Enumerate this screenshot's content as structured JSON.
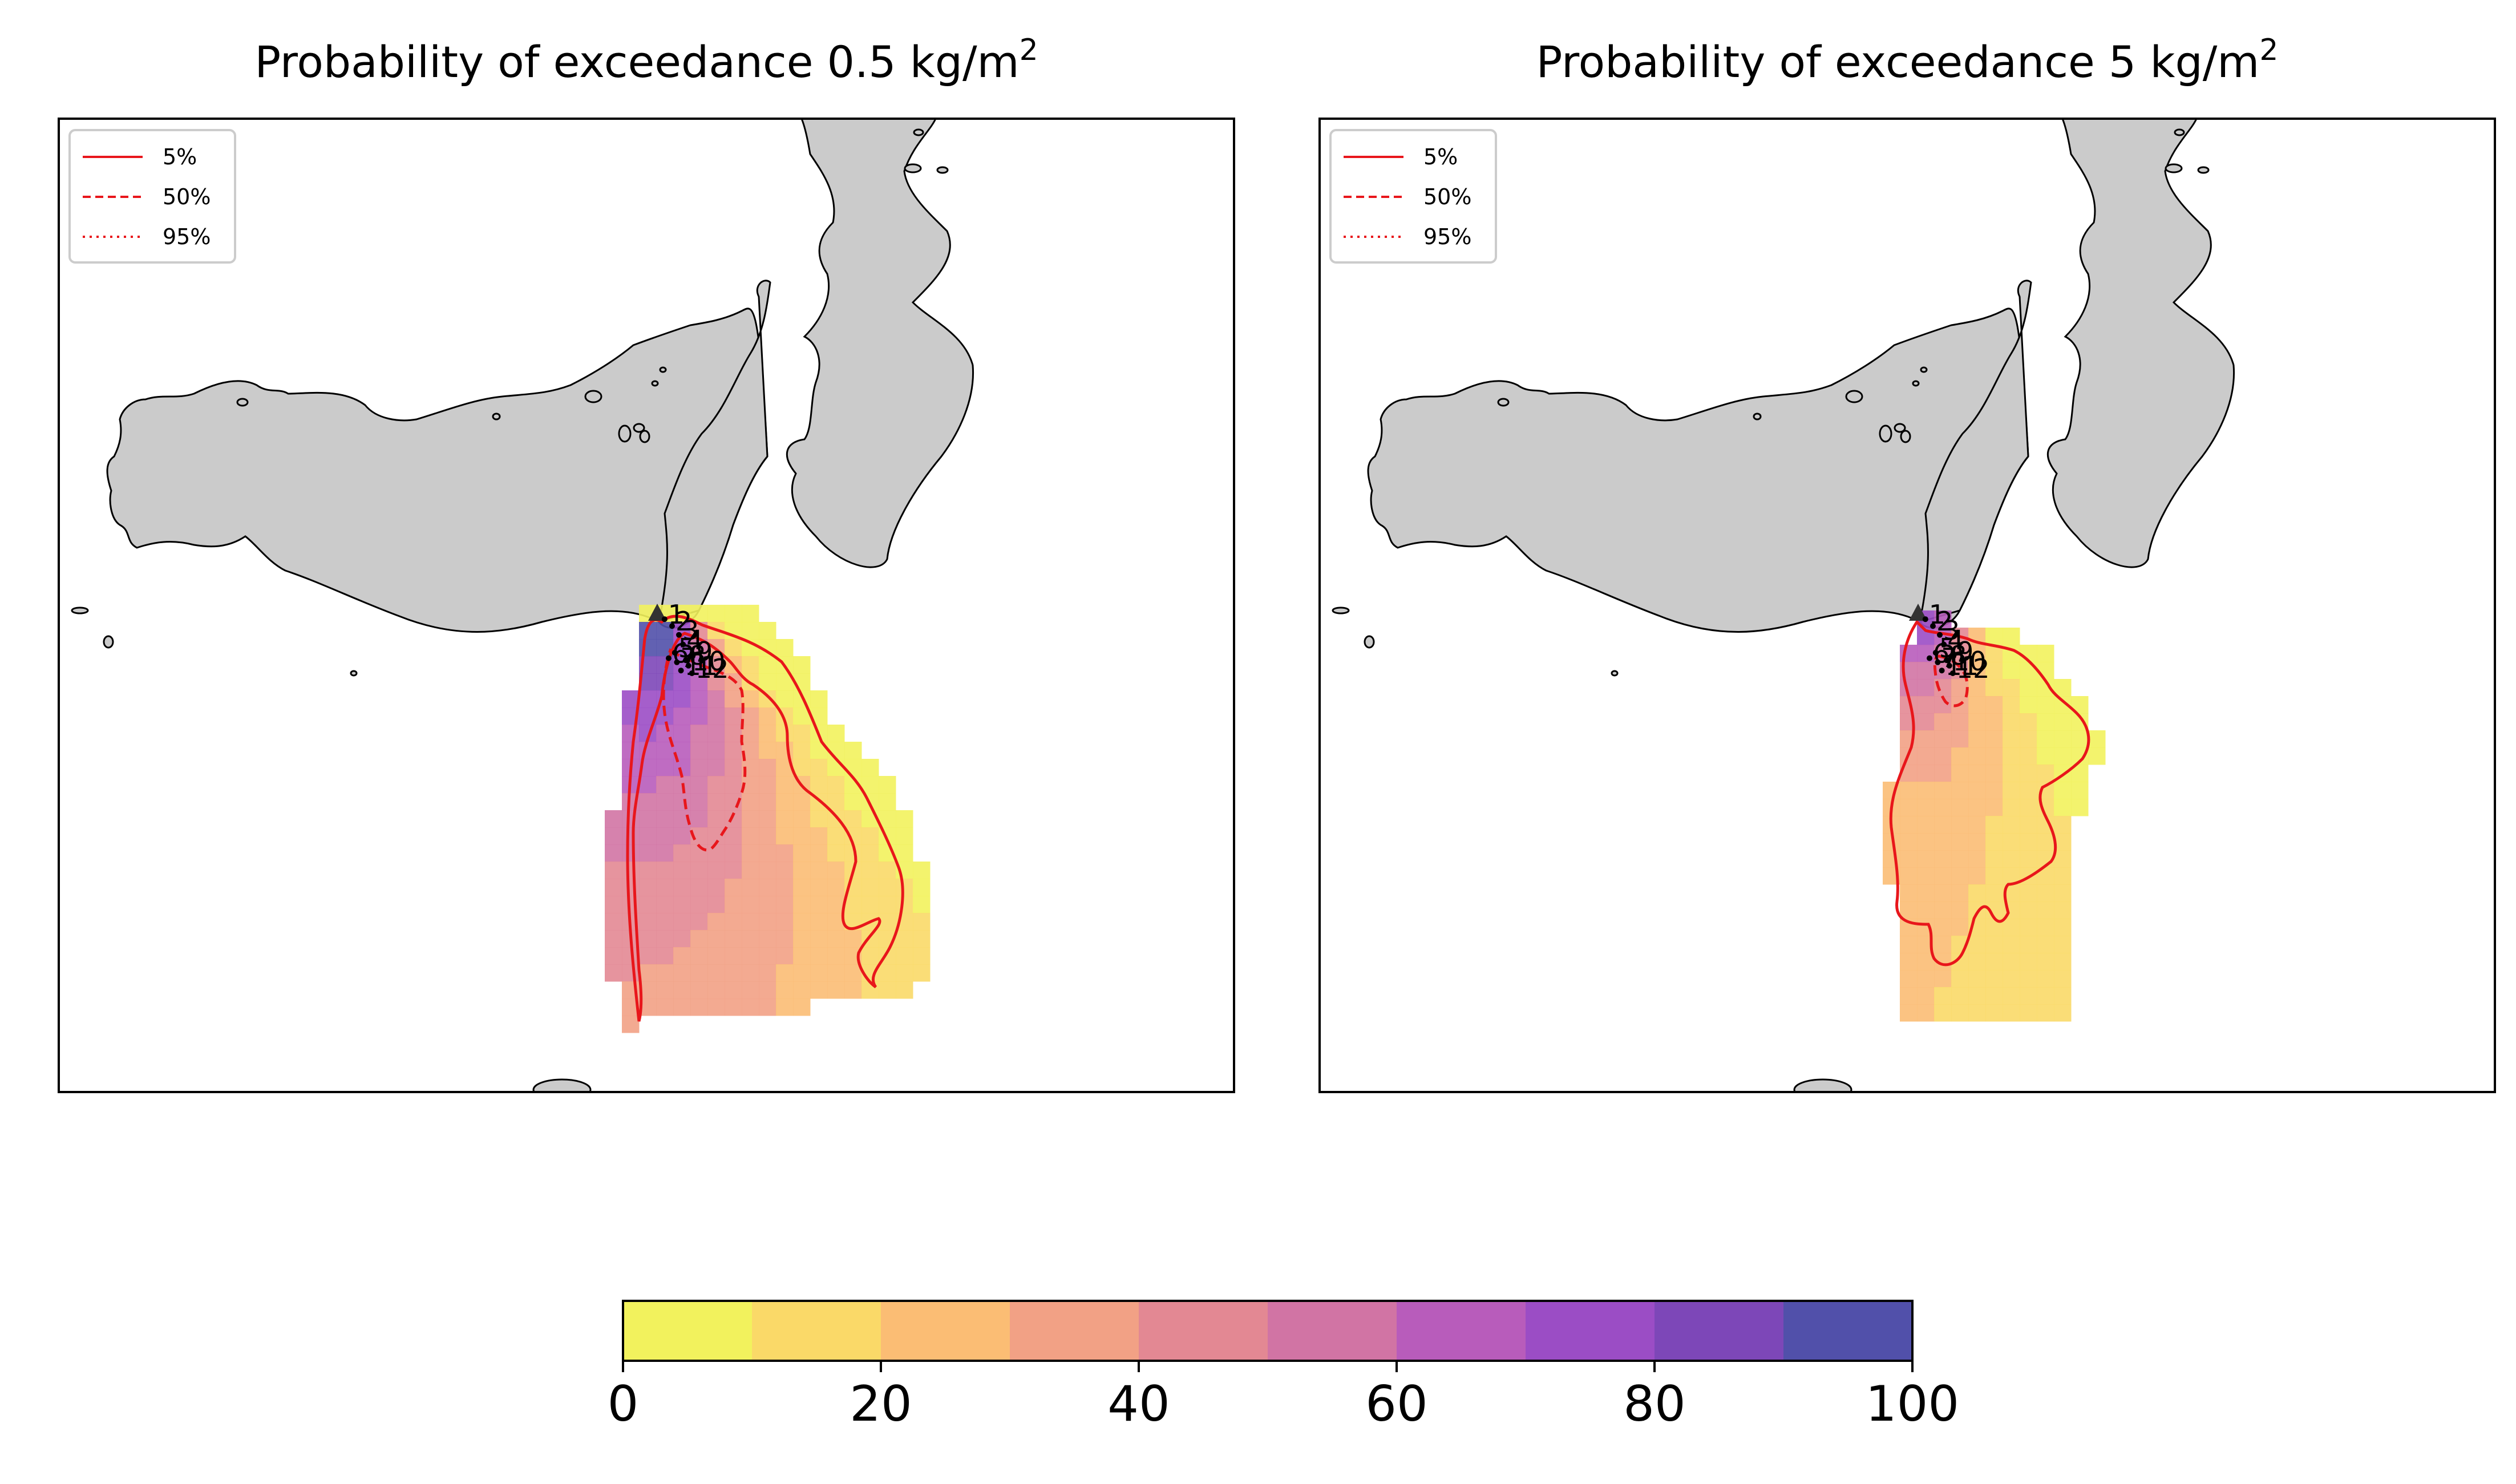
{
  "panels": [
    {
      "title_main": "Probability of exceedance 0.5 kg/m",
      "title_sup": "2",
      "threshold": 0.5,
      "unit": "kg/m2",
      "legend": [
        {
          "label": "5%",
          "style": "solid"
        },
        {
          "label": "50%",
          "style": "dashed"
        },
        {
          "label": "95%",
          "style": "dotted"
        }
      ]
    },
    {
      "title_main": "Probability of exceedance 5 kg/m",
      "title_sup": "2",
      "threshold": 5,
      "unit": "kg/m2",
      "legend": [
        {
          "label": "5%",
          "style": "solid"
        },
        {
          "label": "50%",
          "style": "dashed"
        },
        {
          "label": "95%",
          "style": "dotted"
        }
      ]
    }
  ],
  "colorbar": {
    "ticks": [
      "0",
      "20",
      "40",
      "60",
      "80",
      "100"
    ],
    "bins": [
      {
        "from": 0,
        "to": 10,
        "color": "#f2f25d"
      },
      {
        "from": 10,
        "to": 20,
        "color": "#fad968"
      },
      {
        "from": 20,
        "to": 30,
        "color": "#fbbd74"
      },
      {
        "from": 30,
        "to": 40,
        "color": "#f2a185"
      },
      {
        "from": 40,
        "to": 50,
        "color": "#e38893"
      },
      {
        "from": 50,
        "to": 60,
        "color": "#d174a4"
      },
      {
        "from": 60,
        "to": 70,
        "color": "#b85cbb"
      },
      {
        "from": 70,
        "to": 80,
        "color": "#9b4dc5"
      },
      {
        "from": 80,
        "to": 90,
        "color": "#7d47b8"
      },
      {
        "from": 90,
        "to": 100,
        "color": "#5150aa"
      }
    ]
  },
  "colors": {
    "land": "#cbcbcb",
    "coast": "#000000",
    "contour": "#e8161b",
    "vent": "#333333"
  },
  "vent_labels": [
    "1",
    "2",
    "3",
    "4",
    "5",
    "6",
    "7",
    "8",
    "9",
    "10",
    "11",
    "12"
  ],
  "legend_label_markers": [
    "vent-marker"
  ]
}
